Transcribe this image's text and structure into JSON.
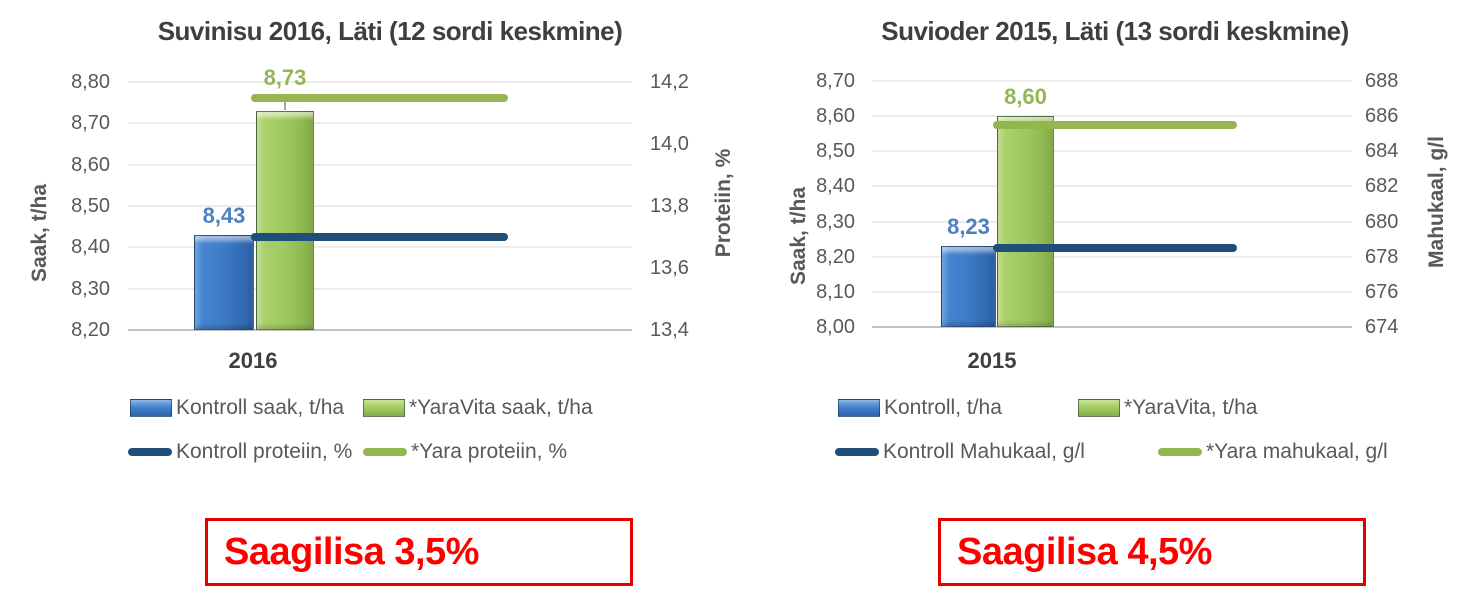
{
  "page": {
    "background": "#ffffff"
  },
  "colors": {
    "kontroll_bar": "#3d7bc7",
    "yaravita_bar": "#9fc95f",
    "kontroll_line": "#1f4e79",
    "yara_line": "#94b64f",
    "label_blue": "#4e81bd",
    "label_green": "#94b755",
    "axis_text": "#595959",
    "title_text": "#3f3f3f",
    "gridline": "#d9d9d9",
    "callout_red": "#fe0000"
  },
  "chart_data": [
    {
      "type": "bar",
      "secondary_type": "line",
      "title": "Suvinisu 2016, Läti (12 sordi keskmine)",
      "categories": [
        "2016"
      ],
      "xlabel": "2016",
      "grid": true,
      "legend_position": "bottom",
      "series": [
        {
          "name": "Kontroll saak, t/ha",
          "type": "bar",
          "axis": "left",
          "values": [
            8.43
          ],
          "label": "8,43",
          "color": "#3d7bc7"
        },
        {
          "name": "*YaraVita saak, t/ha",
          "type": "bar",
          "axis": "left",
          "values": [
            8.73
          ],
          "label": "8,73",
          "color": "#9fc95f"
        },
        {
          "name": "Kontroll proteiin, %",
          "type": "line",
          "axis": "right",
          "values": [
            13.7
          ],
          "color": "#1f4e79"
        },
        {
          "name": "*Yara proteiin, %",
          "type": "line",
          "axis": "right",
          "values": [
            14.15
          ],
          "color": "#94b64f"
        }
      ],
      "axes": {
        "left": {
          "title": "Saak, t/ha",
          "min": 8.2,
          "max": 8.8,
          "ticks": [
            "8,80",
            "8,70",
            "8,60",
            "8,50",
            "8,40",
            "8,30",
            "8,20"
          ]
        },
        "right": {
          "title": "Proteiin, %",
          "min": 13.4,
          "max": 14.2,
          "ticks": [
            "14,2",
            "14,0",
            "13,8",
            "13,6",
            "13,4"
          ]
        }
      },
      "callout": "Saagilisa 3,5%"
    },
    {
      "type": "bar",
      "secondary_type": "line",
      "title": "Suvioder 2015, Läti (13 sordi keskmine)",
      "categories": [
        "2015"
      ],
      "xlabel": "2015",
      "grid": true,
      "legend_position": "bottom",
      "series": [
        {
          "name": "Kontroll, t/ha",
          "type": "bar",
          "axis": "left",
          "values": [
            8.23
          ],
          "label": "8,23",
          "color": "#3d7bc7"
        },
        {
          "name": "*YaraVita, t/ha",
          "type": "bar",
          "axis": "left",
          "values": [
            8.6
          ],
          "label": "8,60",
          "color": "#9fc95f"
        },
        {
          "name": "Kontroll Mahukaal, g/l",
          "type": "line",
          "axis": "right",
          "values": [
            678.5
          ],
          "color": "#1f4e79"
        },
        {
          "name": "*Yara mahukaal, g/l",
          "type": "line",
          "axis": "right",
          "values": [
            685.5
          ],
          "color": "#94b64f"
        }
      ],
      "axes": {
        "left": {
          "title": "Saak, t/ha",
          "min": 8.0,
          "max": 8.7,
          "ticks": [
            "8,70",
            "8,60",
            "8,50",
            "8,40",
            "8,30",
            "8,20",
            "8,10",
            "8,00"
          ]
        },
        "right": {
          "title": "Mahukaal, g/l",
          "min": 674,
          "max": 688,
          "ticks": [
            "688",
            "686",
            "684",
            "682",
            "680",
            "678",
            "676",
            "674"
          ]
        }
      },
      "callout": "Saagilisa 4,5%"
    }
  ]
}
